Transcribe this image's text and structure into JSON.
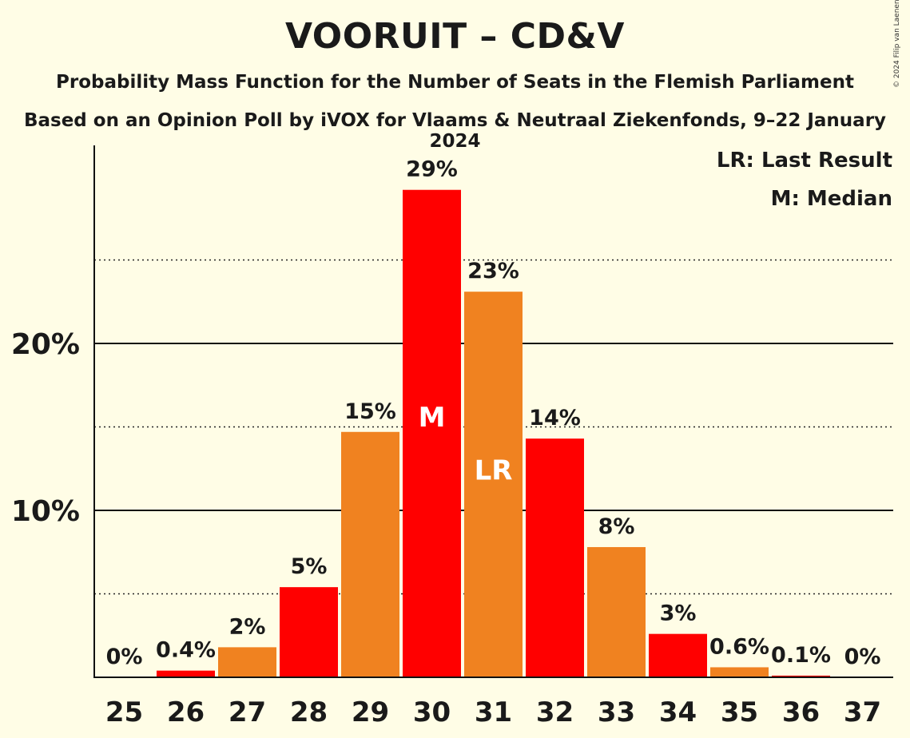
{
  "title": "VOORUIT – CD&V",
  "subtitle": "Probability Mass Function for the Number of Seats in the Flemish Parliament",
  "subtitle2": "Based on an Opinion Poll by iVOX for Vlaams & Neutraal Ziekenfonds, 9–22 January 2024",
  "copyright": "© 2024 Filip van Laenen",
  "legend": {
    "lr": "LR: Last Result",
    "m": "M: Median"
  },
  "colors": {
    "red": "#FF0000",
    "orange": "#F08220",
    "background": "#FFFDE6"
  },
  "chart_data": {
    "type": "bar",
    "categories": [
      "25",
      "26",
      "27",
      "28",
      "29",
      "30",
      "31",
      "32",
      "33",
      "34",
      "35",
      "36",
      "37"
    ],
    "values": [
      0,
      0.4,
      1.8,
      5.4,
      14.7,
      29.2,
      23.1,
      14.3,
      7.8,
      2.6,
      0.6,
      0.1,
      0
    ],
    "value_labels": [
      "0%",
      "0.4%",
      "2%",
      "5%",
      "15%",
      "29%",
      "23%",
      "14%",
      "8%",
      "3%",
      "0.6%",
      "0.1%",
      "0%"
    ],
    "bar_colors": [
      "red",
      "red",
      "orange",
      "red",
      "orange",
      "red",
      "orange",
      "red",
      "orange",
      "red",
      "orange",
      "red",
      "orange"
    ],
    "median_seat": "30",
    "median_label": "M",
    "last_result_seat": "31",
    "last_result_label": "LR",
    "yticks": [
      10,
      20
    ],
    "ytick_labels": [
      "10%",
      "20%"
    ],
    "minor_gridlines": [
      5,
      15,
      25
    ],
    "ylim": [
      0,
      31.5
    ],
    "legend_position": "top-right",
    "grid": true
  }
}
